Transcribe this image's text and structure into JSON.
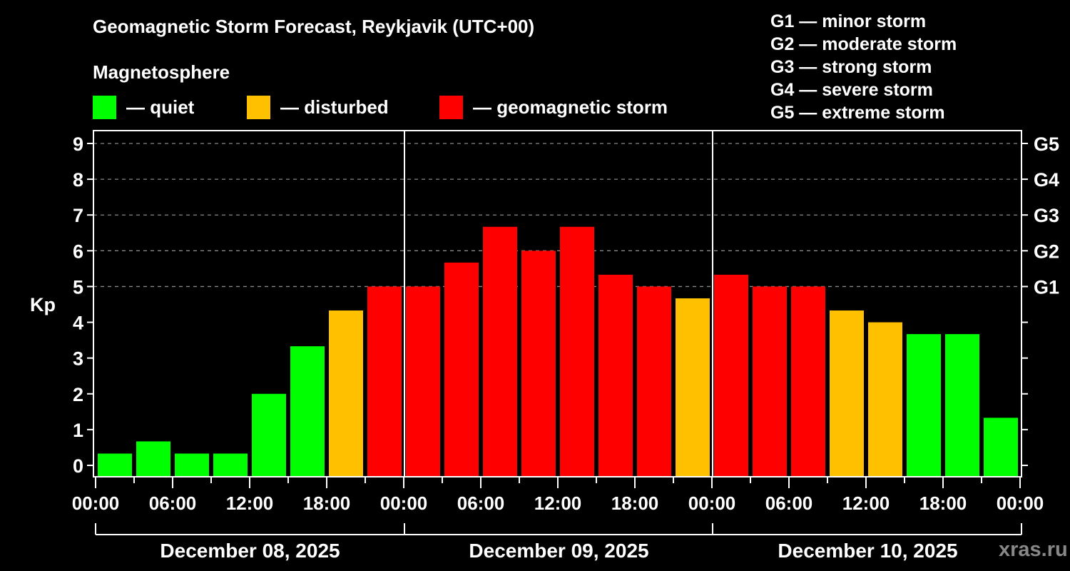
{
  "title": "Geomagnetic Storm Forecast, Reykjavik (UTC+00)",
  "subtitle": "Magnetosphere",
  "legend": [
    {
      "label": "— quiet",
      "color": "#00ff00"
    },
    {
      "label": "— disturbed",
      "color": "#ffc000"
    },
    {
      "label": "— geomagnetic storm",
      "color": "#ff0000"
    }
  ],
  "g_scale_legend": [
    "G1 — minor storm",
    "G2 — moderate storm",
    "G3 — strong storm",
    "G4 — severe storm",
    "G5 — extreme storm"
  ],
  "watermark": "xras.ru",
  "chart_data": {
    "type": "bar",
    "title": "Geomagnetic Storm Forecast, Reykjavik (UTC+00)",
    "xlabel": "",
    "ylabel": "Kp",
    "ylim": [
      0,
      9
    ],
    "yticks": [
      0,
      1,
      2,
      3,
      4,
      5,
      6,
      7,
      8,
      9
    ],
    "right_axis_ticks": [
      {
        "kp": 5,
        "label": "G1"
      },
      {
        "kp": 6,
        "label": "G2"
      },
      {
        "kp": 7,
        "label": "G3"
      },
      {
        "kp": 8,
        "label": "G4"
      },
      {
        "kp": 9,
        "label": "G5"
      }
    ],
    "grid": "dashed horizontal lines at Kp 5-9",
    "x_tick_labels": [
      "00:00",
      "06:00",
      "12:00",
      "18:00",
      "00:00",
      "06:00",
      "12:00",
      "18:00",
      "00:00",
      "06:00",
      "12:00",
      "18:00",
      "00:00"
    ],
    "days": [
      "December 08, 2025",
      "December 09, 2025",
      "December 10, 2025"
    ],
    "categories": [
      "Dec 08 00-03",
      "Dec 08 03-06",
      "Dec 08 06-09",
      "Dec 08 09-12",
      "Dec 08 12-15",
      "Dec 08 15-18",
      "Dec 08 18-21",
      "Dec 08 21-24",
      "Dec 09 00-03",
      "Dec 09 03-06",
      "Dec 09 06-09",
      "Dec 09 09-12",
      "Dec 09 12-15",
      "Dec 09 15-18",
      "Dec 09 18-21",
      "Dec 09 21-24",
      "Dec 10 00-03",
      "Dec 10 03-06",
      "Dec 10 06-09",
      "Dec 10 09-12",
      "Dec 10 12-15",
      "Dec 10 15-18",
      "Dec 10 18-21",
      "Dec 10 21-24"
    ],
    "values": [
      0.33,
      0.67,
      0.33,
      0.33,
      2.0,
      3.33,
      4.33,
      5.0,
      5.0,
      5.67,
      6.67,
      6.0,
      6.67,
      5.33,
      5.0,
      4.67,
      5.33,
      5.0,
      5.0,
      4.33,
      4.0,
      3.67,
      3.67,
      1.33
    ],
    "status": [
      "quiet",
      "quiet",
      "quiet",
      "quiet",
      "quiet",
      "quiet",
      "disturbed",
      "storm",
      "storm",
      "storm",
      "storm",
      "storm",
      "storm",
      "storm",
      "storm",
      "disturbed",
      "storm",
      "storm",
      "storm",
      "disturbed",
      "disturbed",
      "quiet",
      "quiet",
      "quiet"
    ],
    "colors": {
      "quiet": "#00ff00",
      "disturbed": "#ffc000",
      "storm": "#ff0000"
    },
    "legend_position": "top"
  }
}
